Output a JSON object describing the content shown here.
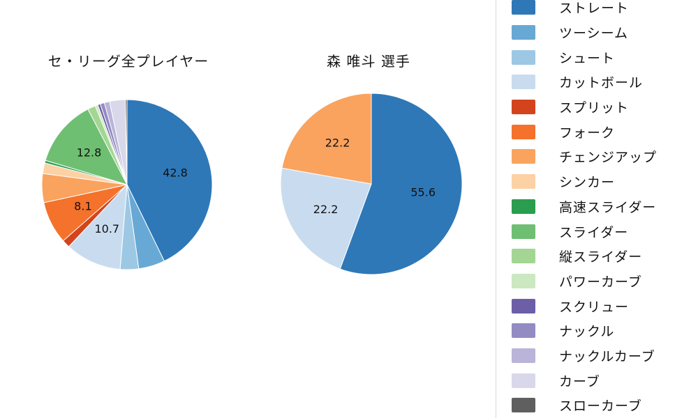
{
  "legend": {
    "items": [
      {
        "label": "ストレート",
        "color": "#2e78b8"
      },
      {
        "label": "ツーシーム",
        "color": "#67a9d4"
      },
      {
        "label": "シュート",
        "color": "#9dc8e4"
      },
      {
        "label": "カットボール",
        "color": "#c9dcef"
      },
      {
        "label": "スプリット",
        "color": "#d4441c"
      },
      {
        "label": "フォーク",
        "color": "#f4722b"
      },
      {
        "label": "チェンジアップ",
        "color": "#f9a35f"
      },
      {
        "label": "シンカー",
        "color": "#fcd1a4"
      },
      {
        "label": "高速スライダー",
        "color": "#2a9d4e"
      },
      {
        "label": "スライダー",
        "color": "#6fbf73"
      },
      {
        "label": "縦スライダー",
        "color": "#a3d693"
      },
      {
        "label": "パワーカーブ",
        "color": "#cbe8c0"
      },
      {
        "label": "スクリュー",
        "color": "#6c5fa7"
      },
      {
        "label": "ナックル",
        "color": "#938cc2"
      },
      {
        "label": "ナックルカーブ",
        "color": "#b9b4d8"
      },
      {
        "label": "カーブ",
        "color": "#d9d8ea"
      },
      {
        "label": "スローカーブ",
        "color": "#5f5f5f"
      }
    ]
  },
  "chart_data": [
    {
      "type": "pie",
      "title": "セ・リーグ全プレイヤー",
      "start_angle": "top",
      "direction": "clockwise",
      "label_threshold": 8,
      "visible_labels": [
        "42.8",
        "10.7",
        "8.1",
        "12.8"
      ],
      "categories": [
        "ストレート",
        "ツーシーム",
        "シュート",
        "カットボール",
        "スプリット",
        "フォーク",
        "チェンジアップ",
        "シンカー",
        "高速スライダー",
        "スライダー",
        "縦スライダー",
        "パワーカーブ",
        "スクリュー",
        "ナックル",
        "ナックルカーブ",
        "カーブ",
        "スローカーブ"
      ],
      "values": [
        42.8,
        5.0,
        3.5,
        10.7,
        1.5,
        8.1,
        5.5,
        2.0,
        0.5,
        12.8,
        1.5,
        0.5,
        0.5,
        0.8,
        1.0,
        3.0,
        0.3
      ]
    },
    {
      "type": "pie",
      "title": "森 唯斗 選手",
      "start_angle": "top",
      "direction": "clockwise",
      "label_threshold": 8,
      "visible_labels": [
        "55.6",
        "22.2",
        "22.2"
      ],
      "categories": [
        "ストレート",
        "カットボール",
        "チェンジアップ"
      ],
      "values": [
        55.6,
        22.2,
        22.2
      ]
    }
  ]
}
